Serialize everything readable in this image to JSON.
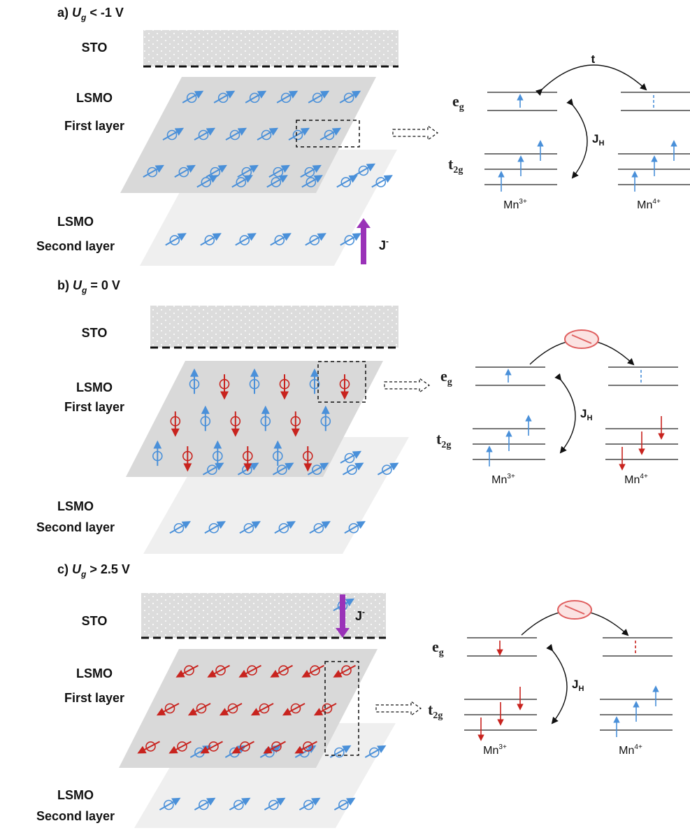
{
  "panels": [
    {
      "header": {
        "prefix": "a)",
        "var": "U",
        "sub": "g",
        "rel": "< -1 V"
      },
      "sto": "STO",
      "first_layer": [
        "LSMO",
        "First layer"
      ],
      "second_layer": [
        "LSMO",
        "Second layer"
      ],
      "current": {
        "label": "J",
        "sup": "-",
        "direction": "up"
      },
      "first_layer_state": "ferromagnetic-up",
      "hopping": {
        "label": "t",
        "blocked": false
      },
      "eg": {
        "main": "e",
        "sub": "g"
      },
      "t2g": {
        "main": "t",
        "sub": "2g"
      },
      "jh": {
        "main": "J",
        "sub": "H"
      },
      "ion_left": {
        "main": "Mn",
        "sup": "3+"
      },
      "ion_right": {
        "main": "Mn",
        "sup": "4+"
      }
    },
    {
      "header": {
        "prefix": "b)",
        "var": "U",
        "sub": "g",
        "rel": "= 0 V"
      },
      "sto": "STO",
      "first_layer": [
        "LSMO",
        "First layer"
      ],
      "second_layer": [
        "LSMO",
        "Second layer"
      ],
      "current": null,
      "first_layer_state": "antiferromagnetic",
      "hopping": {
        "label": "",
        "blocked": true
      },
      "eg": {
        "main": "e",
        "sub": "g"
      },
      "t2g": {
        "main": "t",
        "sub": "2g"
      },
      "jh": {
        "main": "J",
        "sub": "H"
      },
      "ion_left": {
        "main": "Mn",
        "sup": "3+"
      },
      "ion_right": {
        "main": "Mn",
        "sup": "4+"
      }
    },
    {
      "header": {
        "prefix": "c)",
        "var": "U",
        "sub": "g",
        "rel": "> 2.5 V"
      },
      "sto": "STO",
      "first_layer": [
        "LSMO",
        "First layer"
      ],
      "second_layer": [
        "LSMO",
        "Second layer"
      ],
      "current": {
        "label": "J",
        "sup": "-",
        "direction": "down"
      },
      "first_layer_state": "ferromagnetic-down",
      "hopping": {
        "label": "",
        "blocked": true
      },
      "eg": {
        "main": "e",
        "sub": "g"
      },
      "t2g": {
        "main": "t",
        "sub": "2g"
      },
      "jh": {
        "main": "J",
        "sub": "H"
      },
      "ion_left": {
        "main": "Mn",
        "sup": "3+"
      },
      "ion_right": {
        "main": "Mn",
        "sup": "4+"
      }
    }
  ],
  "colors": {
    "spin_up": "#4a90d9",
    "spin_down": "#c8231e",
    "layer_dark": "#d9d9d9",
    "layer_light": "#efefef",
    "sto_fill": "#dcdcdc",
    "current_arrow": "#9a32b8"
  }
}
